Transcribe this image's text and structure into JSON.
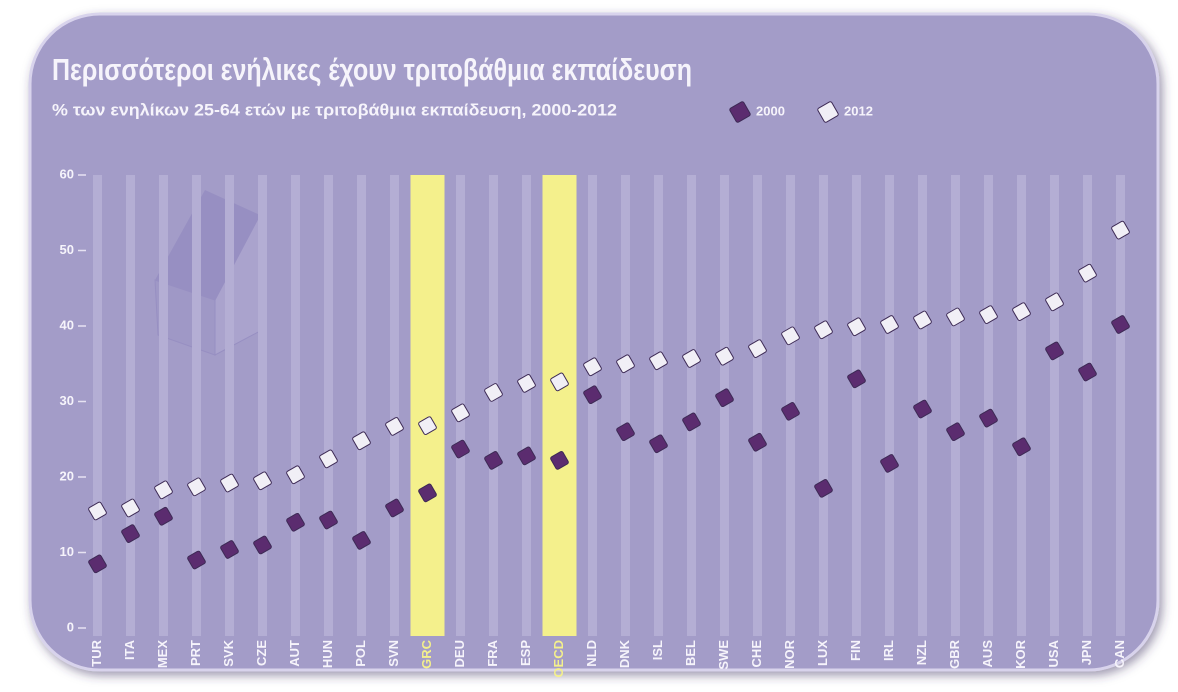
{
  "chart_data": {
    "type": "dot",
    "title": "Περισσότεροι ενήλικες έχουν τριτοβάθμια εκπαίδευση",
    "subtitle": "% των ενηλίκων 25-64 ετών με τριτοβάθμια εκπαίδευση, 2000-2012",
    "categories": [
      "TUR",
      "ITA",
      "MEX",
      "PRT",
      "SVK",
      "CZE",
      "AUT",
      "HUN",
      "POL",
      "SVN",
      "GRC",
      "DEU",
      "FRA",
      "ESP",
      "OECD",
      "NLD",
      "DNK",
      "ISL",
      "BEL",
      "SWE",
      "CHE",
      "NOR",
      "LUX",
      "FIN",
      "IRL",
      "NZL",
      "GBR",
      "AUS",
      "KOR",
      "USA",
      "JPN",
      "CAN"
    ],
    "series": [
      {
        "name": "2000",
        "color": "#5b2c6f",
        "values": [
          8.5,
          12.5,
          14.8,
          9,
          10.4,
          11,
          14,
          14.3,
          11.6,
          15.9,
          17.9,
          23.7,
          22.2,
          22.8,
          22.2,
          30.9,
          26,
          24.4,
          27.3,
          30.5,
          24.6,
          28.7,
          18.5,
          33,
          21.8,
          29,
          26,
          27.8,
          24,
          36.7,
          33.9,
          40.2
        ]
      },
      {
        "name": "2012",
        "color": "#f1eff6",
        "values": [
          15.5,
          15.9,
          18.3,
          18.7,
          19.2,
          19.5,
          20.3,
          22.4,
          24.8,
          26.7,
          26.8,
          28.5,
          31.2,
          32.4,
          32.6,
          34.6,
          35,
          35.4,
          35.7,
          36,
          37,
          38.7,
          39.5,
          39.9,
          40.2,
          40.8,
          41.2,
          41.5,
          41.9,
          43.2,
          47,
          52.7
        ]
      }
    ],
    "ylim": [
      0,
      60
    ],
    "yticks": [
      0,
      10,
      20,
      30,
      40,
      50,
      60
    ],
    "grid": true,
    "highlight_categories": [
      "GRC",
      "OECD"
    ],
    "highlight_color": "#f4f08c",
    "legend": "top-right"
  }
}
